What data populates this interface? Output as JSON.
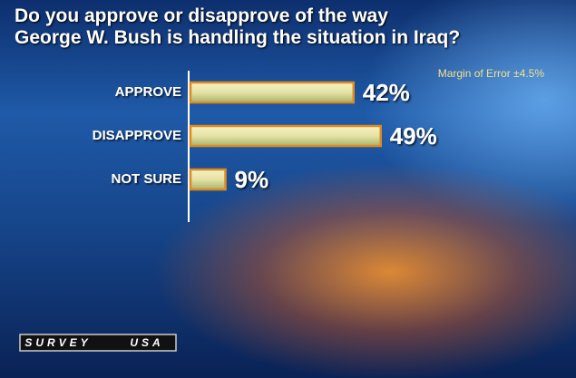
{
  "chart_data": {
    "type": "bar",
    "title": "Do you approve or disapprove of the way\nGeorge W. Bush is handling the situation in Iraq?",
    "annotation": "Margin of Error ±4.5%",
    "categories": [
      "APPROVE",
      "DISAPPROVE",
      "NOT SURE"
    ],
    "values": [
      42,
      49,
      9
    ],
    "value_labels": [
      "42%",
      "49%",
      "9%"
    ],
    "color": "#e8e4a8",
    "logo": [
      "SURVEY",
      "USA"
    ]
  }
}
